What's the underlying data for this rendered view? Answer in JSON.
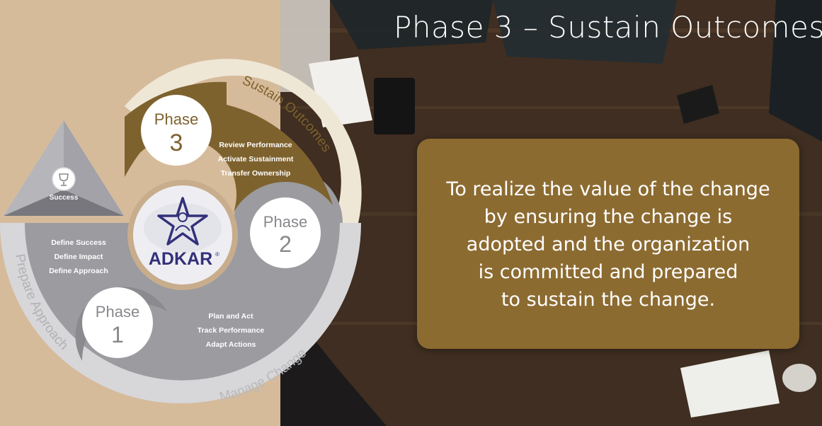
{
  "slide": {
    "title": "Phase 3 – Sustain Outcomes",
    "callout": "To realize the value of the change\nby ensuring the change is\nadopted and the organization\nis committed and prepared\nto sustain the change."
  },
  "diagram": {
    "success_label": "Success",
    "center_logo": "ADKAR",
    "center_logo_mark": "®",
    "phases": [
      {
        "name": "Phase",
        "number": "1",
        "ring_label": "Prepare Approach",
        "actions": [
          "Define Success",
          "Define Impact",
          "Define Approach"
        ]
      },
      {
        "name": "Phase",
        "number": "2",
        "ring_label": "Manage Change",
        "actions": [
          "Plan and Act",
          "Track Performance",
          "Adapt Actions"
        ]
      },
      {
        "name": "Phase",
        "number": "3",
        "ring_label": "Sustain Outcomes",
        "actions": [
          "Review Performance",
          "Activate Sustainment",
          "Transfer Ownership"
        ]
      }
    ]
  },
  "colors": {
    "left_background": "#d6bb9b",
    "brown_accent": "#7e622e",
    "callout_fill": "#8c6b31",
    "cream": "#efe7d6",
    "gray_mid": "#9b9ba0",
    "gray_light": "#c9c9cd",
    "logo_navy": "#33307a"
  }
}
